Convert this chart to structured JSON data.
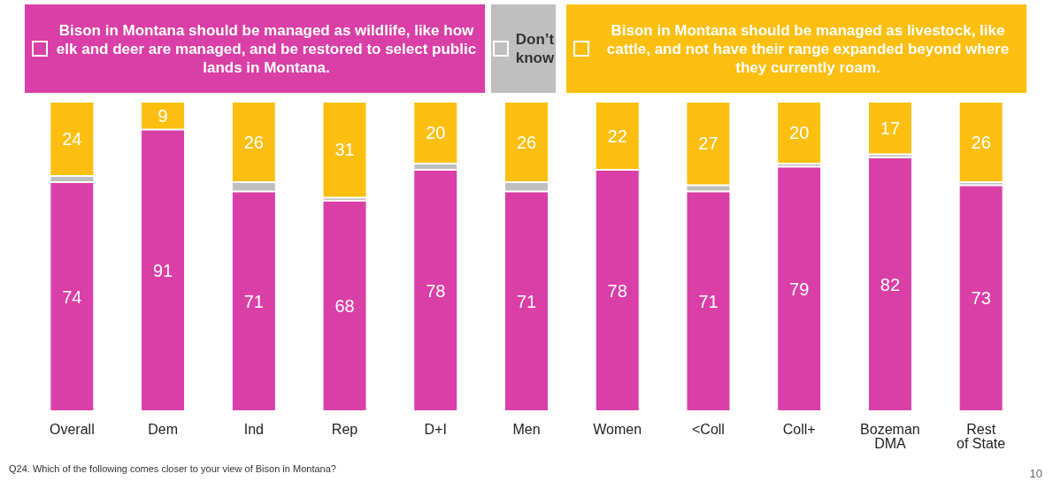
{
  "chart_data": {
    "type": "bar",
    "stacked": true,
    "categories": [
      "Overall",
      "Dem",
      "Ind",
      "Rep",
      "D+I",
      "Men",
      "Women",
      "<Coll",
      "Coll+",
      "Bozeman DMA",
      "Rest of State"
    ],
    "ylim": [
      0,
      100
    ],
    "tick_labels": "x",
    "legend": "top",
    "series": [
      {
        "name": "Bison in Montana should be managed as wildlife, like how elk and deer are managed, and be restored to select public lands in Montana.",
        "color": "#d93fa6",
        "values": [
          74,
          91,
          71,
          68,
          78,
          71,
          78,
          71,
          79,
          82,
          73
        ],
        "value_labels": [
          "74",
          "91",
          "71",
          "68",
          "78",
          "71",
          "78",
          "71",
          "79",
          "82",
          "73"
        ]
      },
      {
        "name": "Don’t know",
        "color": "#bfbfbf",
        "values": [
          2,
          0,
          3,
          1,
          2,
          3,
          0,
          2,
          1,
          1,
          1
        ]
      },
      {
        "name": "Bison in Montana should be managed as livestock, like cattle, and not have their range expanded beyond where they currently roam.",
        "color": "#fcbf10",
        "values": [
          24,
          9,
          26,
          31,
          20,
          26,
          22,
          27,
          20,
          17,
          26
        ],
        "value_labels": [
          "24",
          "9",
          "26",
          "31",
          "20",
          "26",
          "22",
          "27",
          "20",
          "17",
          "26"
        ]
      }
    ],
    "annotations": [
      "Q24. Which of the following comes closer to your view of Bison in Montana?",
      "10"
    ]
  }
}
